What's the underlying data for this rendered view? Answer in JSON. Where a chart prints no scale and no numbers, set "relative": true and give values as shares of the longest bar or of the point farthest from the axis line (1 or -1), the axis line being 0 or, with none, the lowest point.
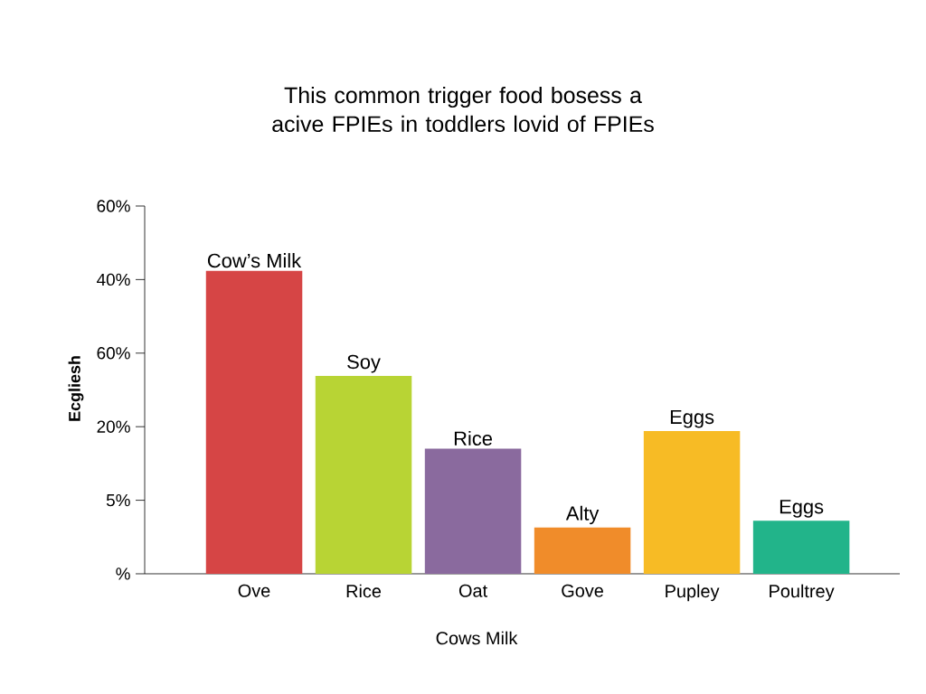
{
  "chart_data": {
    "type": "bar",
    "title": "This common trigger food bosess a acive FPIEs in toddlers lovid of FPIEs",
    "xlabel": "Cows Milk",
    "ylabel": "Ecgliesh",
    "categories": [
      "Ove",
      "Rice",
      "Oat",
      "Gove",
      "Pupley",
      "Poultrey"
    ],
    "values": [
      1,
      0.653,
      0.413,
      0.153,
      0.471,
      0.175
    ],
    "relative": true,
    "colors": [
      "#d64545",
      "#b8d434",
      "#8a6a9e",
      "#f08c2a",
      "#f7bb25",
      "#22b48a"
    ],
    "annotations": [
      "Cow’s Milk",
      "Soy",
      "Rice",
      "Alty",
      "Eggs",
      "Eggs",
      "%",
      "5%",
      "20%",
      "60%",
      "40%",
      "60%"
    ]
  }
}
